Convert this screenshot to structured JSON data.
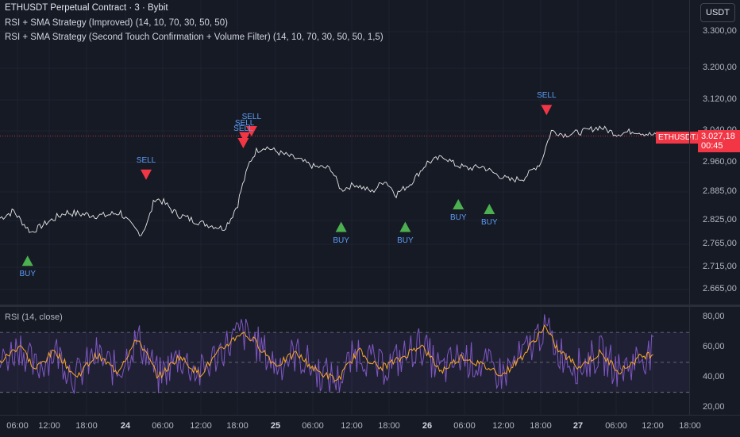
{
  "header": {
    "title": "ETHUSDT Perpetual Contract · 3 · Bybit",
    "strategy1": "RSI + SMA Strategy (Improved) (14, 10, 70, 30, 50, 50)",
    "strategy2": "RSI + SMA Strategy (Second Touch Confirmation + Volume Filter) (14, 10, 70, 30, 50, 50, 1,5)"
  },
  "currency_button": "USDT",
  "price_axis": {
    "ticks": [
      "3.300,00",
      "3.200,00",
      "3.120,00",
      "3.040,00",
      "2.960,00",
      "2.885,00",
      "2.825,00",
      "2.765,00",
      "2.715,00",
      "2.665,00"
    ]
  },
  "last_price": {
    "symbol": "ETHUSDT.P",
    "price": "3.027,18",
    "countdown": "00:45",
    "value": 3027.18
  },
  "signals": {
    "buy_label": "BUY",
    "sell_label": "SELL"
  },
  "rsi": {
    "legend": "RSI (14, close)",
    "ticks": [
      "80,00",
      "60,00",
      "40,00",
      "20,00"
    ],
    "upper_band": 70,
    "middle_band": 50,
    "lower_band": 30
  },
  "time_axis": {
    "ticks": [
      "06:00",
      "12:00",
      "18:00",
      "24",
      "06:00",
      "12:00",
      "18:00",
      "25",
      "06:00",
      "12:00",
      "18:00",
      "26",
      "06:00",
      "12:00",
      "18:00",
      "27",
      "06:00",
      "12:00",
      "18:00"
    ],
    "bold": [
      false,
      false,
      false,
      true,
      false,
      false,
      false,
      true,
      false,
      false,
      false,
      true,
      false,
      false,
      false,
      true,
      false,
      false,
      false
    ]
  },
  "colors": {
    "background": "#161a25",
    "price_line": "#e8e8e8",
    "buy": "#4caf50",
    "sell": "#f23645",
    "label": "#5b9cf6",
    "rsi_line": "#7e57c2",
    "rsi_sma": "#f9a825",
    "last_price": "#f23645"
  },
  "chart_data": {
    "type": "line",
    "symbol": "ETHUSDT.P",
    "price_series": [
      [
        0.0,
        2830
      ],
      [
        0.02,
        2845
      ],
      [
        0.045,
        2795
      ],
      [
        0.07,
        2822
      ],
      [
        0.095,
        2842
      ],
      [
        0.12,
        2838
      ],
      [
        0.15,
        2835
      ],
      [
        0.175,
        2842
      ],
      [
        0.195,
        2805
      ],
      [
        0.205,
        2790
      ],
      [
        0.215,
        2825
      ],
      [
        0.225,
        2872
      ],
      [
        0.235,
        2866
      ],
      [
        0.255,
        2840
      ],
      [
        0.28,
        2825
      ],
      [
        0.3,
        2815
      ],
      [
        0.325,
        2805
      ],
      [
        0.335,
        2830
      ],
      [
        0.345,
        2860
      ],
      [
        0.352,
        2902
      ],
      [
        0.362,
        2960
      ],
      [
        0.372,
        2990
      ],
      [
        0.385,
        3000
      ],
      [
        0.405,
        2985
      ],
      [
        0.43,
        2970
      ],
      [
        0.455,
        2950
      ],
      [
        0.48,
        2945
      ],
      [
        0.495,
        2890
      ],
      [
        0.515,
        2905
      ],
      [
        0.54,
        2885
      ],
      [
        0.558,
        2915
      ],
      [
        0.575,
        2880
      ],
      [
        0.595,
        2905
      ],
      [
        0.62,
        2960
      ],
      [
        0.645,
        2975
      ],
      [
        0.66,
        2955
      ],
      [
        0.68,
        2945
      ],
      [
        0.7,
        2950
      ],
      [
        0.72,
        2930
      ],
      [
        0.74,
        2915
      ],
      [
        0.76,
        2920
      ],
      [
        0.775,
        2945
      ],
      [
        0.785,
        2960
      ],
      [
        0.792,
        3000
      ],
      [
        0.8,
        3040
      ],
      [
        0.82,
        3030
      ],
      [
        0.845,
        3038
      ],
      [
        0.87,
        3050
      ],
      [
        0.895,
        3032
      ],
      [
        0.92,
        3040
      ],
      [
        0.94,
        3032
      ],
      [
        0.955,
        3027
      ]
    ],
    "buy_signals": [
      [
        0.04,
        2730
      ],
      [
        0.495,
        2810
      ],
      [
        0.588,
        2810
      ],
      [
        0.665,
        2860
      ],
      [
        0.71,
        2850
      ]
    ],
    "sell_signals": [
      [
        0.212,
        2930
      ],
      [
        0.353,
        3010
      ],
      [
        0.355,
        3025
      ],
      [
        0.365,
        3040
      ],
      [
        0.793,
        3095
      ]
    ],
    "rsi_series": [
      [
        0.0,
        50
      ],
      [
        0.03,
        62
      ],
      [
        0.05,
        45
      ],
      [
        0.08,
        58
      ],
      [
        0.11,
        40
      ],
      [
        0.14,
        55
      ],
      [
        0.17,
        44
      ],
      [
        0.2,
        66
      ],
      [
        0.23,
        40
      ],
      [
        0.26,
        54
      ],
      [
        0.29,
        42
      ],
      [
        0.32,
        58
      ],
      [
        0.35,
        70
      ],
      [
        0.37,
        64
      ],
      [
        0.4,
        48
      ],
      [
        0.43,
        56
      ],
      [
        0.46,
        44
      ],
      [
        0.49,
        38
      ],
      [
        0.52,
        58
      ],
      [
        0.55,
        46
      ],
      [
        0.58,
        52
      ],
      [
        0.61,
        62
      ],
      [
        0.64,
        44
      ],
      [
        0.67,
        54
      ],
      [
        0.7,
        48
      ],
      [
        0.73,
        42
      ],
      [
        0.76,
        55
      ],
      [
        0.79,
        74
      ],
      [
        0.81,
        58
      ],
      [
        0.84,
        47
      ],
      [
        0.87,
        56
      ],
      [
        0.9,
        44
      ],
      [
        0.93,
        54
      ],
      [
        0.95,
        56
      ]
    ],
    "ylim": [
      2630,
      3350
    ],
    "rsi_ylim": [
      15,
      87
    ]
  }
}
